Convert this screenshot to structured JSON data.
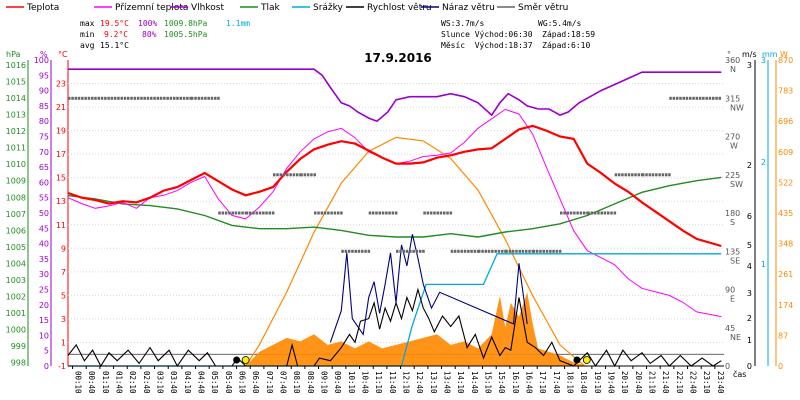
{
  "chart_data": {
    "type": "line",
    "title": "17.9.2016",
    "x_unit": "čas",
    "x_ticks": [
      "00:10",
      "00:40",
      "01:10",
      "01:40",
      "02:10",
      "02:40",
      "03:10",
      "03:40",
      "04:10",
      "04:40",
      "05:10",
      "05:40",
      "06:10",
      "06:40",
      "07:10",
      "07:40",
      "08:10",
      "08:40",
      "09:10",
      "09:40",
      "10:10",
      "10:40",
      "11:10",
      "11:40",
      "12:10",
      "12:40",
      "13:10",
      "13:40",
      "14:10",
      "14:40",
      "15:10",
      "15:40",
      "16:10",
      "16:40",
      "17:10",
      "17:40",
      "18:10",
      "18:40",
      "19:10",
      "19:40",
      "20:10",
      "20:40",
      "21:10",
      "21:40",
      "22:10",
      "22:40",
      "23:10",
      "23:40"
    ],
    "legend": [
      {
        "key": "teplota",
        "label": "Teplota",
        "color": "#ff0000"
      },
      {
        "key": "rosny",
        "label": "Přízemní teplota",
        "color": "#ff00ff"
      },
      {
        "key": "vlhkost",
        "label": "Vlhkost",
        "color": "#9900cc"
      },
      {
        "key": "tlak",
        "label": "Tlak",
        "color": "#228b22"
      },
      {
        "key": "srazky",
        "label": "Srážky",
        "color": "#00aadd"
      },
      {
        "key": "rychlost",
        "label": "Rychlost větru",
        "color": "#000000"
      },
      {
        "key": "naraz",
        "label": "Náraz větru",
        "color": "#000080"
      },
      {
        "key": "smer",
        "label": "Směr větru",
        "color": "#666666"
      }
    ],
    "stats": {
      "max_label": "max",
      "max_temp": "19.5°C",
      "max_hum": "100%",
      "max_press": "1009.8hPa",
      "rain": "1.1mm",
      "min_label": "min",
      "min_temp": "9.2°C",
      "min_hum": "80%",
      "min_press": "1005.5hPa",
      "avg_label": "avg",
      "avg_temp": "15.1°C",
      "ws": "WS:3.7m/s",
      "wg": "WG:5.4m/s",
      "sun": "Slunce Východ:06:30  Západ:18:59",
      "moon": "Měsíc  Východ:18:37  Západ:6:10"
    },
    "axes": {
      "hpa_unit": "hPa",
      "pct_unit": "%",
      "c_unit": "°C",
      "deg_unit": "°",
      "ms_unit": "m/s",
      "mm_unit": "mm",
      "w_unit": "W",
      "hpa_ticks": [
        "1016",
        "1015",
        "1014",
        "1013",
        "1012",
        "1011",
        "1010",
        "1009",
        "1008",
        "1007",
        "1006",
        "1005",
        "1004",
        "1003",
        "1002",
        "1001",
        "1000",
        "999",
        "998"
      ],
      "pct_ticks": [
        "100",
        "95",
        "90",
        "85",
        "80",
        "75",
        "70",
        "65",
        "60",
        "55",
        "50",
        "45",
        "40",
        "35",
        "30",
        "25",
        "20",
        "15",
        "10",
        "5",
        "0"
      ],
      "c_ticks": [
        "23",
        "21",
        "19",
        "17",
        "15",
        "13",
        "11",
        "9",
        "7",
        "5",
        "3",
        "1",
        "-1"
      ],
      "deg_ticks": [
        "360",
        "315",
        "270",
        "225",
        "180",
        "135",
        "90",
        "45",
        "0"
      ],
      "dir_ticks": [
        "N",
        "NW",
        "W",
        "SW",
        "S",
        "SE",
        "E",
        "NE",
        ""
      ],
      "ms_ticks": [
        "3",
        "2",
        "6",
        "5",
        "4",
        "3",
        "2",
        "1",
        "0"
      ],
      "mm_ticks": [
        "3",
        "2",
        "1"
      ],
      "w_ticks": [
        "870",
        "783",
        "696",
        "609",
        "522",
        "435",
        "348",
        "261",
        "174",
        "87",
        "0"
      ]
    },
    "ranges": {
      "temp_c": [
        -1,
        25
      ],
      "humidity_pct": [
        0,
        100
      ],
      "wind_ms": [
        0,
        6
      ],
      "dir_deg": [
        0,
        360
      ],
      "solar_w": [
        0,
        870
      ]
    },
    "temperature": [
      [
        0,
        13.7
      ],
      [
        0.5,
        13.3
      ],
      [
        1,
        13.1
      ],
      [
        1.5,
        12.8
      ],
      [
        2,
        13
      ],
      [
        2.5,
        12.9
      ],
      [
        3,
        13.3
      ],
      [
        3.5,
        13.9
      ],
      [
        4,
        14.2
      ],
      [
        4.5,
        14.8
      ],
      [
        5,
        15.4
      ],
      [
        5.5,
        14.7
      ],
      [
        6,
        14
      ],
      [
        6.5,
        13.5
      ],
      [
        7,
        13.8
      ],
      [
        7.5,
        14.2
      ],
      [
        8,
        15.5
      ],
      [
        8.5,
        16.6
      ],
      [
        9,
        17.4
      ],
      [
        9.5,
        17.8
      ],
      [
        10,
        18.1
      ],
      [
        10.5,
        17.9
      ],
      [
        11,
        17.3
      ],
      [
        11.5,
        16.7
      ],
      [
        12,
        16.2
      ],
      [
        12.5,
        16.2
      ],
      [
        13,
        16.3
      ],
      [
        13.5,
        16.7
      ],
      [
        14,
        16.9
      ],
      [
        14.5,
        17.2
      ],
      [
        15,
        17.4
      ],
      [
        15.5,
        17.5
      ],
      [
        16,
        18.3
      ],
      [
        16.5,
        19.1
      ],
      [
        17,
        19.4
      ],
      [
        17.5,
        19
      ],
      [
        18,
        18.5
      ],
      [
        18.5,
        18.3
      ],
      [
        19,
        16.2
      ],
      [
        19.5,
        15.4
      ],
      [
        20,
        14.5
      ],
      [
        20.5,
        13.8
      ],
      [
        21,
        12.9
      ],
      [
        21.5,
        12.1
      ],
      [
        22,
        11.3
      ],
      [
        22.5,
        10.5
      ],
      [
        23,
        9.8
      ],
      [
        23.9,
        9.2
      ]
    ],
    "ground_temperature": [
      [
        0,
        13.3
      ],
      [
        0.5,
        12.8
      ],
      [
        1,
        12.4
      ],
      [
        1.5,
        12.6
      ],
      [
        2,
        12.9
      ],
      [
        2.5,
        12.4
      ],
      [
        3,
        13.3
      ],
      [
        3.5,
        13.5
      ],
      [
        4,
        13.9
      ],
      [
        4.5,
        14.6
      ],
      [
        5,
        15.1
      ],
      [
        5.5,
        13.2
      ],
      [
        6,
        11.8
      ],
      [
        6.5,
        11.5
      ],
      [
        7,
        12.5
      ],
      [
        7.5,
        13.8
      ],
      [
        8,
        15.8
      ],
      [
        8.5,
        17.2
      ],
      [
        9,
        18.3
      ],
      [
        9.5,
        18.9
      ],
      [
        10,
        19.2
      ],
      [
        10.5,
        18.4
      ],
      [
        11,
        17.2
      ],
      [
        11.5,
        16.7
      ],
      [
        12,
        16.2
      ],
      [
        12.5,
        16.4
      ],
      [
        13,
        16.8
      ],
      [
        13.5,
        16.9
      ],
      [
        14,
        17.1
      ],
      [
        14.5,
        18
      ],
      [
        15,
        19.2
      ],
      [
        15.5,
        20
      ],
      [
        16,
        20.8
      ],
      [
        16.5,
        20.4
      ],
      [
        17,
        18.7
      ],
      [
        17.5,
        15.9
      ],
      [
        18,
        13.2
      ],
      [
        18.5,
        10.5
      ],
      [
        19,
        8.8
      ],
      [
        19.5,
        8.2
      ],
      [
        20,
        7.6
      ],
      [
        20.5,
        6.4
      ],
      [
        21,
        5.6
      ],
      [
        21.5,
        5.3
      ],
      [
        22,
        5
      ],
      [
        22.5,
        4.4
      ],
      [
        23,
        3.6
      ],
      [
        23.9,
        3.2
      ]
    ],
    "humidity": [
      [
        0,
        97
      ],
      [
        5,
        97
      ],
      [
        9,
        97
      ],
      [
        9.3,
        95
      ],
      [
        9.6,
        91
      ],
      [
        10,
        86
      ],
      [
        10.3,
        85
      ],
      [
        10.6,
        83
      ],
      [
        11,
        81
      ],
      [
        11.3,
        80
      ],
      [
        11.7,
        83
      ],
      [
        12,
        87
      ],
      [
        12.5,
        88
      ],
      [
        13,
        88
      ],
      [
        13.5,
        88
      ],
      [
        14,
        89
      ],
      [
        14.5,
        88
      ],
      [
        15,
        86
      ],
      [
        15.5,
        82
      ],
      [
        15.8,
        86
      ],
      [
        16.1,
        89
      ],
      [
        16.5,
        87
      ],
      [
        16.8,
        85
      ],
      [
        17.2,
        84
      ],
      [
        17.6,
        84
      ],
      [
        18,
        82
      ],
      [
        18.3,
        83
      ],
      [
        18.7,
        86
      ],
      [
        19.1,
        88
      ],
      [
        19.5,
        90
      ],
      [
        20,
        92
      ],
      [
        20.5,
        94
      ],
      [
        21,
        96
      ],
      [
        22,
        96
      ],
      [
        23.9,
        96
      ]
    ],
    "pressure_hpa": [
      [
        0,
        1008.1
      ],
      [
        1,
        1007.9
      ],
      [
        2,
        1007.6
      ],
      [
        3,
        1007.5
      ],
      [
        4,
        1007.3
      ],
      [
        5,
        1006.9
      ],
      [
        6,
        1006.3
      ],
      [
        7,
        1006.1
      ],
      [
        8,
        1006.1
      ],
      [
        9,
        1006.2
      ],
      [
        10,
        1006
      ],
      [
        11,
        1005.7
      ],
      [
        12,
        1005.6
      ],
      [
        13,
        1005.6
      ],
      [
        14,
        1005.8
      ],
      [
        15,
        1005.6
      ],
      [
        16,
        1005.9
      ],
      [
        17,
        1006.1
      ],
      [
        18,
        1006.4
      ],
      [
        19,
        1006.9
      ],
      [
        20,
        1007.6
      ],
      [
        21,
        1008.3
      ],
      [
        22,
        1008.7
      ],
      [
        23,
        1009
      ],
      [
        23.9,
        1009.2
      ]
    ],
    "rain_mm": [
      [
        0,
        0
      ],
      [
        12.2,
        0
      ],
      [
        12.6,
        0.4
      ],
      [
        13.1,
        0.8
      ],
      [
        14,
        0.8
      ],
      [
        15.2,
        0.8
      ],
      [
        15.7,
        1.1
      ],
      [
        23.9,
        1.1
      ]
    ],
    "wind_speed": [
      [
        0,
        0.4
      ],
      [
        0.3,
        0.8
      ],
      [
        0.6,
        0.2
      ],
      [
        0.9,
        0.6
      ],
      [
        1.2,
        0
      ],
      [
        1.5,
        0.5
      ],
      [
        1.8,
        0.2
      ],
      [
        2.2,
        0.6
      ],
      [
        2.6,
        0.1
      ],
      [
        3,
        0.7
      ],
      [
        3.3,
        0.2
      ],
      [
        3.7,
        0.6
      ],
      [
        4,
        0
      ],
      [
        4.4,
        0.6
      ],
      [
        4.8,
        0.2
      ],
      [
        5.1,
        0.5
      ],
      [
        5.4,
        0
      ],
      [
        6,
        0
      ],
      [
        6.2,
        0.3
      ],
      [
        6.5,
        0
      ],
      [
        8,
        0
      ],
      [
        8.2,
        0.8
      ],
      [
        8.4,
        0
      ],
      [
        9,
        0
      ],
      [
        9.2,
        0.3
      ],
      [
        9.6,
        0.2
      ],
      [
        10,
        0.7
      ],
      [
        10.3,
        1.2
      ],
      [
        10.5,
        0.9
      ],
      [
        10.7,
        1.7
      ],
      [
        11,
        1.8
      ],
      [
        11.2,
        2.4
      ],
      [
        11.4,
        1.4
      ],
      [
        11.6,
        2.2
      ],
      [
        11.8,
        1.7
      ],
      [
        12,
        2.4
      ],
      [
        12.2,
        1.8
      ],
      [
        12.4,
        2.6
      ],
      [
        12.6,
        2.1
      ],
      [
        12.8,
        2.9
      ],
      [
        13,
        2.2
      ],
      [
        13.2,
        1.8
      ],
      [
        13.4,
        1.3
      ],
      [
        13.7,
        1.9
      ],
      [
        14,
        1.5
      ],
      [
        14.3,
        1.9
      ],
      [
        14.6,
        0.7
      ],
      [
        14.9,
        1.2
      ],
      [
        15.2,
        0.3
      ],
      [
        15.5,
        1.1
      ],
      [
        15.8,
        0.4
      ],
      [
        16,
        0.7
      ],
      [
        16.2,
        0.6
      ],
      [
        16.5,
        2.6
      ],
      [
        16.8,
        0.9
      ],
      [
        17.1,
        0.7
      ],
      [
        17.4,
        0.4
      ],
      [
        17.7,
        0.9
      ],
      [
        18,
        0.2
      ],
      [
        18.5,
        0
      ],
      [
        19,
        0.5
      ],
      [
        19.3,
        0
      ],
      [
        19.7,
        0.6
      ],
      [
        20,
        0
      ],
      [
        20.3,
        0.6
      ],
      [
        20.6,
        0.2
      ],
      [
        21,
        0.5
      ],
      [
        21.3,
        0.1
      ],
      [
        21.7,
        0.4
      ],
      [
        22,
        0
      ],
      [
        22.4,
        0.4
      ],
      [
        22.8,
        0
      ],
      [
        23.2,
        0.3
      ],
      [
        23.6,
        0
      ],
      [
        23.9,
        0.2
      ]
    ],
    "wind_gust": [
      [
        9.6,
        0.9
      ],
      [
        10,
        2.1
      ],
      [
        10.2,
        4.3
      ],
      [
        10.4,
        1.8
      ],
      [
        10.8,
        1.2
      ],
      [
        11,
        2.6
      ],
      [
        11.2,
        3.2
      ],
      [
        11.4,
        2
      ],
      [
        11.6,
        3.1
      ],
      [
        11.8,
        4.3
      ],
      [
        12,
        2.4
      ],
      [
        12.2,
        4.6
      ],
      [
        12.4,
        3.8
      ],
      [
        12.6,
        5
      ],
      [
        12.8,
        4.1
      ],
      [
        13,
        3.1
      ],
      [
        13.3,
        2.2
      ],
      [
        13.6,
        2.8
      ],
      [
        16.3,
        1.6
      ],
      [
        16.5,
        3.9
      ],
      [
        16.8,
        1.6
      ]
    ],
    "wind_dir": [
      [
        0,
        315
      ],
      [
        4.5,
        315
      ],
      [
        5.5,
        180
      ],
      [
        6.5,
        180
      ],
      [
        7.5,
        225
      ],
      [
        8.5,
        225
      ],
      [
        9,
        180
      ],
      [
        10,
        135
      ],
      [
        11,
        180
      ],
      [
        12,
        135
      ],
      [
        13,
        180
      ],
      [
        14,
        135
      ],
      [
        15,
        135
      ],
      [
        16,
        135
      ],
      [
        17,
        135
      ],
      [
        18,
        180
      ],
      [
        19,
        180
      ],
      [
        20,
        225
      ],
      [
        21,
        225
      ],
      [
        22,
        315
      ],
      [
        23.9,
        315
      ]
    ],
    "solar_w": [
      [
        0,
        0
      ],
      [
        6.5,
        0
      ],
      [
        7,
        40
      ],
      [
        7.5,
        60
      ],
      [
        8,
        80
      ],
      [
        8.5,
        70
      ],
      [
        9,
        90
      ],
      [
        9.5,
        60
      ],
      [
        10,
        70
      ],
      [
        10.5,
        50
      ],
      [
        11,
        70
      ],
      [
        11.5,
        50
      ],
      [
        12,
        60
      ],
      [
        12.5,
        70
      ],
      [
        13,
        80
      ],
      [
        13.5,
        90
      ],
      [
        14,
        60
      ],
      [
        14.5,
        70
      ],
      [
        15,
        50
      ],
      [
        15.5,
        90
      ],
      [
        15.8,
        200
      ],
      [
        16,
        110
      ],
      [
        16.2,
        180
      ],
      [
        16.5,
        140
      ],
      [
        16.8,
        210
      ],
      [
        17,
        120
      ],
      [
        17.2,
        50
      ],
      [
        17.6,
        40
      ],
      [
        18,
        30
      ],
      [
        18.5,
        10
      ],
      [
        19,
        0
      ],
      [
        23.9,
        0
      ]
    ],
    "solar_theoretical_w": [
      [
        6.5,
        0
      ],
      [
        7,
        60
      ],
      [
        8,
        210
      ],
      [
        9,
        380
      ],
      [
        10,
        520
      ],
      [
        11,
        610
      ],
      [
        12,
        650
      ],
      [
        13,
        640
      ],
      [
        14,
        590
      ],
      [
        15,
        500
      ],
      [
        16,
        360
      ],
      [
        17,
        200
      ],
      [
        18,
        60
      ],
      [
        18.9,
        0
      ]
    ],
    "sun_events": {
      "sunrise": "06:30",
      "sunset": "18:59",
      "moonrise": "18:37",
      "moonset": "6:10"
    }
  }
}
